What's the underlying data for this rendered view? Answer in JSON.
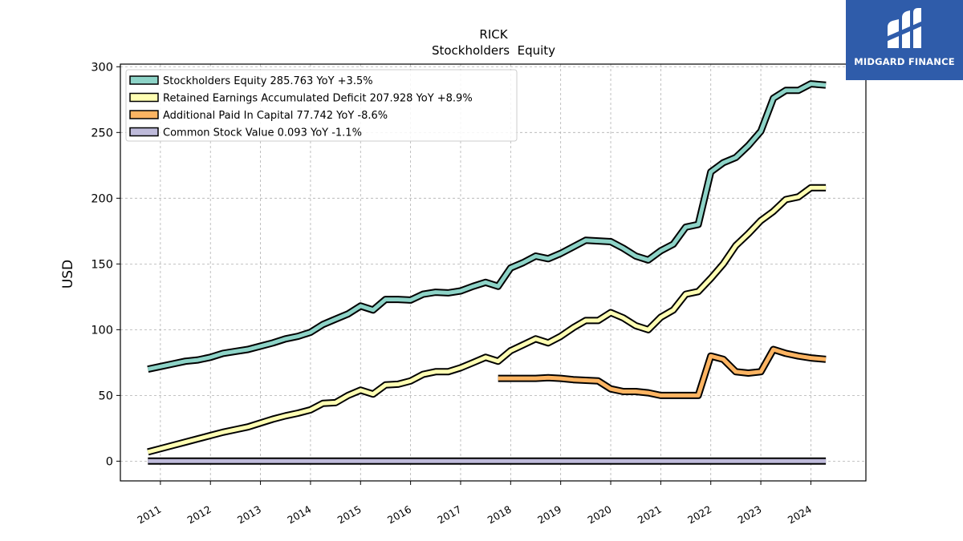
{
  "brand": {
    "name": "MIDGARD FINANCE",
    "logo_icon": "midgard-logo-icon",
    "background": "#2f5caa"
  },
  "chart_data": {
    "type": "line",
    "title": "RICK",
    "subtitle": "Stockholders  Equity",
    "xlabel": "",
    "ylabel": "USD",
    "ylim": [
      -15,
      302
    ],
    "xlim": [
      2010.2,
      2025.1
    ],
    "yticks": [
      0,
      50,
      100,
      150,
      200,
      250,
      300
    ],
    "xticks": [
      2011,
      2012,
      2013,
      2014,
      2015,
      2016,
      2017,
      2018,
      2019,
      2020,
      2021,
      2022,
      2023,
      2024
    ],
    "grid": true,
    "legend_position": "top-left",
    "series": [
      {
        "name": "Stockholders Equity",
        "legend": "Stockholders Equity  285.763 YoY +3.5%",
        "color": "#8dd3c7",
        "points": [
          [
            2010.75,
            70
          ],
          [
            2011.0,
            72
          ],
          [
            2011.25,
            74
          ],
          [
            2011.5,
            76
          ],
          [
            2011.75,
            77
          ],
          [
            2012.0,
            79
          ],
          [
            2012.25,
            82
          ],
          [
            2012.5,
            83.5
          ],
          [
            2012.75,
            85
          ],
          [
            2013.0,
            87.5
          ],
          [
            2013.25,
            90
          ],
          [
            2013.5,
            93
          ],
          [
            2013.75,
            95
          ],
          [
            2014.0,
            98
          ],
          [
            2014.25,
            104
          ],
          [
            2014.5,
            108
          ],
          [
            2014.75,
            112
          ],
          [
            2015.0,
            118
          ],
          [
            2015.25,
            115
          ],
          [
            2015.5,
            123
          ],
          [
            2015.75,
            123
          ],
          [
            2016.0,
            122.5
          ],
          [
            2016.25,
            127
          ],
          [
            2016.5,
            128.5
          ],
          [
            2016.75,
            128
          ],
          [
            2017.0,
            129.5
          ],
          [
            2017.25,
            133
          ],
          [
            2017.5,
            136
          ],
          [
            2017.75,
            133
          ],
          [
            2018.0,
            147
          ],
          [
            2018.25,
            151
          ],
          [
            2018.5,
            156
          ],
          [
            2018.75,
            154
          ],
          [
            2019.0,
            158
          ],
          [
            2019.25,
            163
          ],
          [
            2019.5,
            168
          ],
          [
            2019.75,
            167.5
          ],
          [
            2020.0,
            167
          ],
          [
            2020.25,
            162
          ],
          [
            2020.5,
            156
          ],
          [
            2020.75,
            153
          ],
          [
            2021.0,
            160
          ],
          [
            2021.25,
            165
          ],
          [
            2021.5,
            178
          ],
          [
            2021.75,
            180
          ],
          [
            2022.0,
            220
          ],
          [
            2022.25,
            227
          ],
          [
            2022.5,
            231
          ],
          [
            2022.75,
            240
          ],
          [
            2023.0,
            251
          ],
          [
            2023.25,
            276
          ],
          [
            2023.5,
            282
          ],
          [
            2023.75,
            282
          ],
          [
            2024.0,
            287
          ],
          [
            2024.3,
            286
          ]
        ]
      },
      {
        "name": "Retained Earnings Accumulated Deficit",
        "legend": "Retained Earnings Accumulated Deficit  207.928 YoY +8.9%",
        "color": "#ffffb3",
        "points": [
          [
            2010.75,
            7
          ],
          [
            2011.0,
            9.5
          ],
          [
            2011.25,
            12
          ],
          [
            2011.5,
            14.5
          ],
          [
            2011.75,
            17
          ],
          [
            2012.0,
            19.5
          ],
          [
            2012.25,
            22
          ],
          [
            2012.5,
            24
          ],
          [
            2012.75,
            26
          ],
          [
            2013.0,
            29
          ],
          [
            2013.25,
            32
          ],
          [
            2013.5,
            34.5
          ],
          [
            2013.75,
            36.5
          ],
          [
            2014.0,
            39
          ],
          [
            2014.25,
            44
          ],
          [
            2014.5,
            44.5
          ],
          [
            2014.75,
            50
          ],
          [
            2015.0,
            54
          ],
          [
            2015.25,
            51
          ],
          [
            2015.5,
            58
          ],
          [
            2015.75,
            58.5
          ],
          [
            2016.0,
            61
          ],
          [
            2016.25,
            66
          ],
          [
            2016.5,
            68
          ],
          [
            2016.75,
            68
          ],
          [
            2017.0,
            71
          ],
          [
            2017.25,
            75
          ],
          [
            2017.5,
            79
          ],
          [
            2017.75,
            76
          ],
          [
            2018.0,
            84
          ],
          [
            2018.25,
            88.5
          ],
          [
            2018.5,
            93
          ],
          [
            2018.75,
            90
          ],
          [
            2019.0,
            95
          ],
          [
            2019.25,
            101.5
          ],
          [
            2019.5,
            107
          ],
          [
            2019.75,
            107
          ],
          [
            2020.0,
            113
          ],
          [
            2020.25,
            109
          ],
          [
            2020.5,
            103
          ],
          [
            2020.75,
            100
          ],
          [
            2021.0,
            109.5
          ],
          [
            2021.25,
            115
          ],
          [
            2021.5,
            127
          ],
          [
            2021.75,
            129
          ],
          [
            2022.0,
            139
          ],
          [
            2022.25,
            150
          ],
          [
            2022.5,
            164
          ],
          [
            2022.75,
            173
          ],
          [
            2023.0,
            183
          ],
          [
            2023.25,
            190
          ],
          [
            2023.5,
            199
          ],
          [
            2023.75,
            201
          ],
          [
            2024.0,
            208
          ],
          [
            2024.3,
            208
          ]
        ]
      },
      {
        "name": "Additional Paid In Capital",
        "legend": "Additional Paid In Capital  77.742 YoY -8.6%",
        "color": "#fdb462",
        "points": [
          [
            2017.75,
            63
          ],
          [
            2018.0,
            63
          ],
          [
            2018.25,
            63
          ],
          [
            2018.5,
            63
          ],
          [
            2018.75,
            63.5
          ],
          [
            2019.0,
            63
          ],
          [
            2019.25,
            62
          ],
          [
            2019.5,
            61.5
          ],
          [
            2019.75,
            61
          ],
          [
            2020.0,
            55
          ],
          [
            2020.25,
            53
          ],
          [
            2020.5,
            53
          ],
          [
            2020.75,
            52
          ],
          [
            2021.0,
            50
          ],
          [
            2021.25,
            50
          ],
          [
            2021.5,
            50
          ],
          [
            2021.75,
            50
          ],
          [
            2022.0,
            80
          ],
          [
            2022.25,
            77.5
          ],
          [
            2022.5,
            68
          ],
          [
            2022.75,
            67
          ],
          [
            2023.0,
            68
          ],
          [
            2023.25,
            85
          ],
          [
            2023.5,
            82
          ],
          [
            2023.75,
            80
          ],
          [
            2024.0,
            78.5
          ],
          [
            2024.3,
            77.5
          ]
        ]
      },
      {
        "name": "Common Stock Value",
        "legend": "Common Stock Value  0.093 YoY -1.1%",
        "color": "#bebada",
        "points": [
          [
            2010.75,
            0.09
          ],
          [
            2024.3,
            0.09
          ]
        ]
      }
    ]
  }
}
